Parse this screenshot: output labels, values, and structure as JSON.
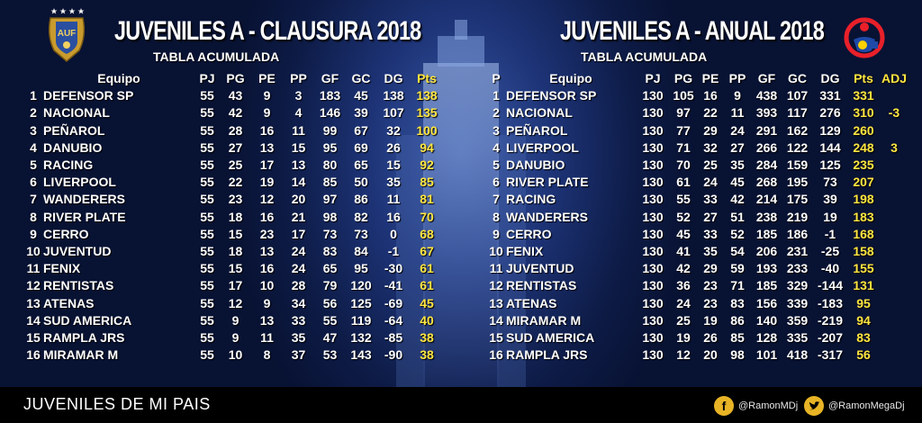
{
  "left": {
    "title": "JUVENILES A - CLAUSURA 2018",
    "subtitle": "TABLA ACUMULADA",
    "headers": {
      "team": "Equipo",
      "pj": "PJ",
      "pg": "PG",
      "pe": "PE",
      "pp": "PP",
      "gf": "GF",
      "gc": "GC",
      "dg": "DG",
      "pts": "Pts"
    },
    "rows": [
      {
        "pos": "1",
        "team": "DEFENSOR SP",
        "pj": "55",
        "pg": "43",
        "pe": "9",
        "pp": "3",
        "gf": "183",
        "gc": "45",
        "dg": "138",
        "pts": "138"
      },
      {
        "pos": "2",
        "team": "NACIONAL",
        "pj": "55",
        "pg": "42",
        "pe": "9",
        "pp": "4",
        "gf": "146",
        "gc": "39",
        "dg": "107",
        "pts": "135"
      },
      {
        "pos": "3",
        "team": "PEÑAROL",
        "pj": "55",
        "pg": "28",
        "pe": "16",
        "pp": "11",
        "gf": "99",
        "gc": "67",
        "dg": "32",
        "pts": "100"
      },
      {
        "pos": "4",
        "team": "DANUBIO",
        "pj": "55",
        "pg": "27",
        "pe": "13",
        "pp": "15",
        "gf": "95",
        "gc": "69",
        "dg": "26",
        "pts": "94"
      },
      {
        "pos": "5",
        "team": "RACING",
        "pj": "55",
        "pg": "25",
        "pe": "17",
        "pp": "13",
        "gf": "80",
        "gc": "65",
        "dg": "15",
        "pts": "92"
      },
      {
        "pos": "6",
        "team": "LIVERPOOL",
        "pj": "55",
        "pg": "22",
        "pe": "19",
        "pp": "14",
        "gf": "85",
        "gc": "50",
        "dg": "35",
        "pts": "85"
      },
      {
        "pos": "7",
        "team": "WANDERERS",
        "pj": "55",
        "pg": "23",
        "pe": "12",
        "pp": "20",
        "gf": "97",
        "gc": "86",
        "dg": "11",
        "pts": "81"
      },
      {
        "pos": "8",
        "team": "RIVER PLATE",
        "pj": "55",
        "pg": "18",
        "pe": "16",
        "pp": "21",
        "gf": "98",
        "gc": "82",
        "dg": "16",
        "pts": "70"
      },
      {
        "pos": "9",
        "team": "CERRO",
        "pj": "55",
        "pg": "15",
        "pe": "23",
        "pp": "17",
        "gf": "73",
        "gc": "73",
        "dg": "0",
        "pts": "68"
      },
      {
        "pos": "10",
        "team": "JUVENTUD",
        "pj": "55",
        "pg": "18",
        "pe": "13",
        "pp": "24",
        "gf": "83",
        "gc": "84",
        "dg": "-1",
        "pts": "67"
      },
      {
        "pos": "11",
        "team": "FENIX",
        "pj": "55",
        "pg": "15",
        "pe": "16",
        "pp": "24",
        "gf": "65",
        "gc": "95",
        "dg": "-30",
        "pts": "61"
      },
      {
        "pos": "12",
        "team": "RENTISTAS",
        "pj": "55",
        "pg": "17",
        "pe": "10",
        "pp": "28",
        "gf": "79",
        "gc": "120",
        "dg": "-41",
        "pts": "61"
      },
      {
        "pos": "13",
        "team": "ATENAS",
        "pj": "55",
        "pg": "12",
        "pe": "9",
        "pp": "34",
        "gf": "56",
        "gc": "125",
        "dg": "-69",
        "pts": "45"
      },
      {
        "pos": "14",
        "team": "SUD AMERICA",
        "pj": "55",
        "pg": "9",
        "pe": "13",
        "pp": "33",
        "gf": "55",
        "gc": "119",
        "dg": "-64",
        "pts": "40"
      },
      {
        "pos": "15",
        "team": "RAMPLA JRS",
        "pj": "55",
        "pg": "9",
        "pe": "11",
        "pp": "35",
        "gf": "47",
        "gc": "132",
        "dg": "-85",
        "pts": "38"
      },
      {
        "pos": "16",
        "team": "MIRAMAR M",
        "pj": "55",
        "pg": "10",
        "pe": "8",
        "pp": "37",
        "gf": "53",
        "gc": "143",
        "dg": "-90",
        "pts": "38"
      }
    ]
  },
  "right": {
    "title": "JUVENILES A - ANUAL 2018",
    "subtitle": "TABLA ACUMULADA",
    "headers": {
      "pos": "P",
      "team": "Equipo",
      "pj": "PJ",
      "pg": "PG",
      "pe": "PE",
      "pp": "PP",
      "gf": "GF",
      "gc": "GC",
      "dg": "DG",
      "pts": "Pts",
      "adj": "ADJ"
    },
    "rows": [
      {
        "pos": "1",
        "team": "DEFENSOR SP",
        "pj": "130",
        "pg": "105",
        "pe": "16",
        "pp": "9",
        "gf": "438",
        "gc": "107",
        "dg": "331",
        "pts": "331",
        "adj": ""
      },
      {
        "pos": "2",
        "team": "NACIONAL",
        "pj": "130",
        "pg": "97",
        "pe": "22",
        "pp": "11",
        "gf": "393",
        "gc": "117",
        "dg": "276",
        "pts": "310",
        "adj": "-3"
      },
      {
        "pos": "3",
        "team": "PEÑAROL",
        "pj": "130",
        "pg": "77",
        "pe": "29",
        "pp": "24",
        "gf": "291",
        "gc": "162",
        "dg": "129",
        "pts": "260",
        "adj": ""
      },
      {
        "pos": "4",
        "team": "LIVERPOOL",
        "pj": "130",
        "pg": "71",
        "pe": "32",
        "pp": "27",
        "gf": "266",
        "gc": "122",
        "dg": "144",
        "pts": "248",
        "adj": "3"
      },
      {
        "pos": "5",
        "team": "DANUBIO",
        "pj": "130",
        "pg": "70",
        "pe": "25",
        "pp": "35",
        "gf": "284",
        "gc": "159",
        "dg": "125",
        "pts": "235",
        "adj": ""
      },
      {
        "pos": "6",
        "team": "RIVER PLATE",
        "pj": "130",
        "pg": "61",
        "pe": "24",
        "pp": "45",
        "gf": "268",
        "gc": "195",
        "dg": "73",
        "pts": "207",
        "adj": ""
      },
      {
        "pos": "7",
        "team": "RACING",
        "pj": "130",
        "pg": "55",
        "pe": "33",
        "pp": "42",
        "gf": "214",
        "gc": "175",
        "dg": "39",
        "pts": "198",
        "adj": ""
      },
      {
        "pos": "8",
        "team": "WANDERERS",
        "pj": "130",
        "pg": "52",
        "pe": "27",
        "pp": "51",
        "gf": "238",
        "gc": "219",
        "dg": "19",
        "pts": "183",
        "adj": ""
      },
      {
        "pos": "9",
        "team": "CERRO",
        "pj": "130",
        "pg": "45",
        "pe": "33",
        "pp": "52",
        "gf": "185",
        "gc": "186",
        "dg": "-1",
        "pts": "168",
        "adj": ""
      },
      {
        "pos": "10",
        "team": "FENIX",
        "pj": "130",
        "pg": "41",
        "pe": "35",
        "pp": "54",
        "gf": "206",
        "gc": "231",
        "dg": "-25",
        "pts": "158",
        "adj": ""
      },
      {
        "pos": "11",
        "team": "JUVENTUD",
        "pj": "130",
        "pg": "42",
        "pe": "29",
        "pp": "59",
        "gf": "193",
        "gc": "233",
        "dg": "-40",
        "pts": "155",
        "adj": ""
      },
      {
        "pos": "12",
        "team": "RENTISTAS",
        "pj": "130",
        "pg": "36",
        "pe": "23",
        "pp": "71",
        "gf": "185",
        "gc": "329",
        "dg": "-144",
        "pts": "131",
        "adj": ""
      },
      {
        "pos": "13",
        "team": "ATENAS",
        "pj": "130",
        "pg": "24",
        "pe": "23",
        "pp": "83",
        "gf": "156",
        "gc": "339",
        "dg": "-183",
        "pts": "95",
        "adj": ""
      },
      {
        "pos": "14",
        "team": "MIRAMAR M",
        "pj": "130",
        "pg": "25",
        "pe": "19",
        "pp": "86",
        "gf": "140",
        "gc": "359",
        "dg": "-219",
        "pts": "94",
        "adj": ""
      },
      {
        "pos": "15",
        "team": "SUD AMERICA",
        "pj": "130",
        "pg": "19",
        "pe": "26",
        "pp": "85",
        "gf": "128",
        "gc": "335",
        "dg": "-207",
        "pts": "83",
        "adj": ""
      },
      {
        "pos": "16",
        "team": "RAMPLA JRS",
        "pj": "130",
        "pg": "12",
        "pe": "20",
        "pp": "98",
        "gf": "101",
        "gc": "418",
        "dg": "-317",
        "pts": "56",
        "adj": ""
      }
    ]
  },
  "logos": {
    "auf_text": "AUF"
  },
  "footer": {
    "text": "JUVENILES DE MI PAIS",
    "facebook": {
      "icon": "facebook-icon",
      "handle": "@RamonMDj"
    },
    "twitter": {
      "icon": "twitter-icon",
      "handle": "@RamonMegaDj"
    }
  },
  "colors": {
    "points": "#ffe640",
    "background": "#0d1b46",
    "footer": "#000000",
    "social_icon": "#e8b426"
  }
}
